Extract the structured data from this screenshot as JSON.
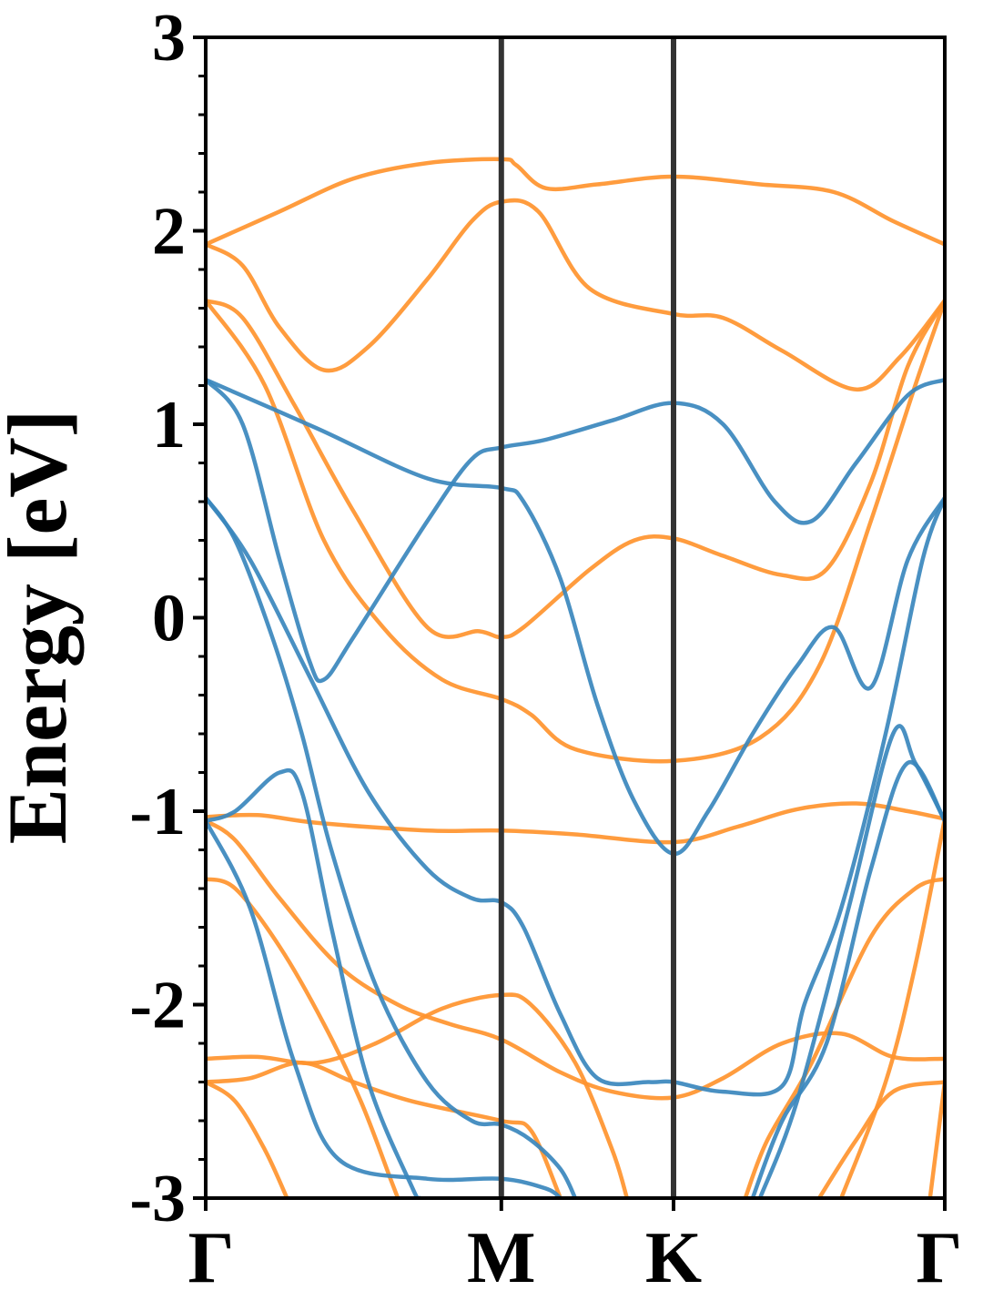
{
  "chart_data": {
    "type": "line",
    "title": "",
    "xlabel": "",
    "ylabel": "Energy [eV]",
    "ylim": [
      -3,
      3
    ],
    "xlim": [
      0,
      10
    ],
    "grid": false,
    "x_ticks": [
      {
        "label": "Γ",
        "x": 0
      },
      {
        "label": "M",
        "x": 4
      },
      {
        "label": "K",
        "x": 6.33
      },
      {
        "label": "Γ",
        "x": 10
      }
    ],
    "y_ticks": [
      {
        "label": "3",
        "value": 3
      },
      {
        "label": "2",
        "value": 2
      },
      {
        "label": "1",
        "value": 1
      },
      {
        "label": "0",
        "value": 0
      },
      {
        "label": "-1",
        "value": -1
      },
      {
        "label": "-2",
        "value": -2
      },
      {
        "label": "-3",
        "value": -3
      }
    ],
    "colors": {
      "blue": "#3a87bd",
      "orange": "#ff942e",
      "vline": "#333333"
    },
    "series": [
      {
        "color": "orange",
        "points": [
          [
            0,
            1.93
          ],
          [
            1,
            2.1
          ],
          [
            2,
            2.27
          ],
          [
            3,
            2.35
          ],
          [
            4,
            2.37
          ],
          [
            4.2,
            2.34
          ],
          [
            4.6,
            2.22
          ],
          [
            5.3,
            2.24
          ],
          [
            6.33,
            2.28
          ],
          [
            7.5,
            2.24
          ],
          [
            8.5,
            2.2
          ],
          [
            9.3,
            2.05
          ],
          [
            10,
            1.93
          ]
        ]
      },
      {
        "color": "orange",
        "points": [
          [
            0,
            1.93
          ],
          [
            0.5,
            1.82
          ],
          [
            1,
            1.5
          ],
          [
            1.6,
            1.28
          ],
          [
            2.2,
            1.4
          ],
          [
            3,
            1.75
          ],
          [
            3.6,
            2.05
          ],
          [
            4,
            2.15
          ],
          [
            4.5,
            2.1
          ],
          [
            5.2,
            1.7
          ],
          [
            6.33,
            1.57
          ],
          [
            7,
            1.55
          ],
          [
            7.8,
            1.38
          ],
          [
            8.8,
            1.18
          ],
          [
            9.4,
            1.35
          ],
          [
            10,
            1.64
          ]
        ]
      },
      {
        "color": "orange",
        "points": [
          [
            0,
            1.64
          ],
          [
            0.5,
            1.55
          ],
          [
            1.2,
            1.1
          ],
          [
            2,
            0.55
          ],
          [
            3,
            -0.05
          ],
          [
            3.7,
            -0.07
          ],
          [
            4,
            -0.1
          ],
          [
            4.3,
            -0.05
          ],
          [
            5.2,
            0.25
          ],
          [
            5.8,
            0.4
          ],
          [
            6.33,
            0.41
          ],
          [
            7,
            0.32
          ],
          [
            7.8,
            0.22
          ],
          [
            8.4,
            0.25
          ],
          [
            9,
            0.7
          ],
          [
            9.5,
            1.3
          ],
          [
            10,
            1.64
          ]
        ]
      },
      {
        "color": "orange",
        "points": [
          [
            0,
            1.64
          ],
          [
            0.8,
            1.2
          ],
          [
            1.6,
            0.4
          ],
          [
            2.4,
            -0.05
          ],
          [
            3.2,
            -0.32
          ],
          [
            4,
            -0.42
          ],
          [
            4.4,
            -0.5
          ],
          [
            5,
            -0.68
          ],
          [
            6.33,
            -0.74
          ],
          [
            7.5,
            -0.62
          ],
          [
            8.3,
            -0.25
          ],
          [
            9,
            0.5
          ],
          [
            9.6,
            1.2
          ],
          [
            10,
            1.64
          ]
        ]
      },
      {
        "color": "orange",
        "points": [
          [
            0,
            -1.03
          ],
          [
            0.7,
            -1.02
          ],
          [
            1.5,
            -1.06
          ],
          [
            3,
            -1.1
          ],
          [
            4,
            -1.1
          ],
          [
            5,
            -1.12
          ],
          [
            6.33,
            -1.16
          ],
          [
            7.2,
            -1.08
          ],
          [
            8,
            -0.99
          ],
          [
            8.8,
            -0.96
          ],
          [
            9.5,
            -1
          ],
          [
            10,
            -1.04
          ]
        ]
      },
      {
        "color": "orange",
        "points": [
          [
            0,
            -1.05
          ],
          [
            0.4,
            -1.15
          ],
          [
            1,
            -1.45
          ],
          [
            1.8,
            -1.8
          ],
          [
            2.6,
            -2.0
          ],
          [
            3.3,
            -2.1
          ],
          [
            4,
            -2.18
          ],
          [
            4.8,
            -2.35
          ],
          [
            5.5,
            -2.45
          ],
          [
            6.33,
            -2.48
          ],
          [
            7,
            -2.38
          ],
          [
            7.8,
            -2.2
          ],
          [
            8.6,
            -2.15
          ],
          [
            9.3,
            -2.27
          ],
          [
            10,
            -2.28
          ]
        ]
      },
      {
        "color": "orange",
        "points": [
          [
            0,
            -1.35
          ],
          [
            0.4,
            -1.4
          ],
          [
            1,
            -1.7
          ],
          [
            1.6,
            -2.1
          ],
          [
            2.1,
            -2.5
          ],
          [
            2.5,
            -2.9
          ],
          [
            2.6,
            -3
          ]
        ]
      },
      {
        "color": "orange",
        "points": [
          [
            0,
            -2.28
          ],
          [
            0.7,
            -2.27
          ],
          [
            1.5,
            -2.3
          ],
          [
            2.3,
            -2.2
          ],
          [
            3.2,
            -2.02
          ],
          [
            4,
            -1.95
          ],
          [
            4.4,
            -2.0
          ],
          [
            5,
            -2.3
          ],
          [
            5.5,
            -2.75
          ],
          [
            5.7,
            -3
          ]
        ]
      },
      {
        "color": "orange",
        "points": [
          [
            0,
            -2.4
          ],
          [
            0.6,
            -2.38
          ],
          [
            1.3,
            -2.3
          ],
          [
            2,
            -2.4
          ],
          [
            2.8,
            -2.5
          ],
          [
            4,
            -2.6
          ],
          [
            4.4,
            -2.65
          ],
          [
            4.8,
            -3
          ]
        ]
      },
      {
        "color": "orange",
        "points": [
          [
            0,
            -2.4
          ],
          [
            0.4,
            -2.5
          ],
          [
            0.8,
            -2.75
          ],
          [
            1.1,
            -3
          ]
        ]
      },
      {
        "color": "orange",
        "points": [
          [
            7.3,
            -3
          ],
          [
            7.6,
            -2.7
          ],
          [
            8.2,
            -2.3
          ],
          [
            9,
            -1.65
          ],
          [
            9.6,
            -1.4
          ],
          [
            10,
            -1.35
          ]
        ]
      },
      {
        "color": "orange",
        "points": [
          [
            8.3,
            -3
          ],
          [
            8.8,
            -2.7
          ],
          [
            9.3,
            -2.45
          ],
          [
            10,
            -2.4
          ]
        ]
      },
      {
        "color": "orange",
        "points": [
          [
            8.6,
            -3
          ],
          [
            9.2,
            -2.4
          ],
          [
            9.6,
            -1.8
          ],
          [
            10,
            -1.04
          ]
        ]
      },
      {
        "color": "orange",
        "points": [
          [
            9.8,
            -3
          ],
          [
            9.9,
            -2.7
          ],
          [
            10,
            -2.4
          ]
        ]
      },
      {
        "color": "blue",
        "points": [
          [
            0,
            1.23
          ],
          [
            1.5,
            0.98
          ],
          [
            3,
            0.72
          ],
          [
            4,
            0.67
          ],
          [
            4.3,
            0.6
          ],
          [
            4.8,
            0.2
          ],
          [
            5.3,
            -0.45
          ],
          [
            5.8,
            -0.95
          ],
          [
            6.33,
            -1.22
          ],
          [
            6.8,
            -1.0
          ],
          [
            7.4,
            -0.6
          ],
          [
            8,
            -0.25
          ],
          [
            8.5,
            -0.05
          ],
          [
            9.0,
            -0.36
          ],
          [
            9.5,
            0.3
          ],
          [
            10,
            0.62
          ]
        ]
      },
      {
        "color": "blue",
        "points": [
          [
            0,
            1.23
          ],
          [
            0.5,
            1.0
          ],
          [
            1,
            0.3
          ],
          [
            1.4,
            -0.22
          ],
          [
            1.6,
            -0.32
          ],
          [
            2,
            -0.1
          ],
          [
            3,
            0.5
          ],
          [
            3.6,
            0.82
          ],
          [
            4,
            0.88
          ],
          [
            4.6,
            0.92
          ],
          [
            5.5,
            1.02
          ],
          [
            6.33,
            1.11
          ],
          [
            7,
            1.0
          ],
          [
            7.7,
            0.6
          ],
          [
            8.2,
            0.5
          ],
          [
            8.8,
            0.8
          ],
          [
            9.5,
            1.15
          ],
          [
            10,
            1.23
          ]
        ]
      },
      {
        "color": "blue",
        "points": [
          [
            0,
            0.62
          ],
          [
            0.6,
            0.3
          ],
          [
            1.4,
            -0.3
          ],
          [
            2.2,
            -0.9
          ],
          [
            3,
            -1.3
          ],
          [
            3.6,
            -1.45
          ],
          [
            4,
            -1.47
          ],
          [
            4.3,
            -1.6
          ],
          [
            4.8,
            -2.05
          ],
          [
            5.3,
            -2.38
          ],
          [
            6,
            -2.4
          ],
          [
            6.33,
            -2.4
          ],
          [
            7,
            -2.45
          ],
          [
            7.8,
            -2.42
          ],
          [
            8.1,
            -2.0
          ],
          [
            8.6,
            -1.5
          ],
          [
            9.2,
            -0.6
          ],
          [
            9.7,
            0.3
          ],
          [
            10,
            0.62
          ]
        ]
      },
      {
        "color": "blue",
        "points": [
          [
            0,
            0.62
          ],
          [
            0.4,
            0.4
          ],
          [
            0.9,
            -0.1
          ],
          [
            1.3,
            -0.6
          ],
          [
            1.7,
            -1.2
          ],
          [
            2.3,
            -1.9
          ],
          [
            3,
            -2.4
          ],
          [
            3.6,
            -2.6
          ],
          [
            4,
            -2.62
          ],
          [
            4.4,
            -2.7
          ],
          [
            4.8,
            -2.85
          ],
          [
            5,
            -3
          ]
        ]
      },
      {
        "color": "blue",
        "points": [
          [
            0,
            -1.05
          ],
          [
            0.4,
            -1.0
          ],
          [
            1.0,
            -0.8
          ],
          [
            1.3,
            -0.9
          ],
          [
            1.7,
            -1.6
          ],
          [
            2.2,
            -2.4
          ],
          [
            2.8,
            -2.95
          ],
          [
            2.9,
            -3
          ]
        ]
      },
      {
        "color": "blue",
        "points": [
          [
            0,
            -1.05
          ],
          [
            0.6,
            -1.5
          ],
          [
            1.2,
            -2.3
          ],
          [
            1.8,
            -2.8
          ],
          [
            3,
            -2.9
          ],
          [
            4,
            -2.9
          ],
          [
            4.6,
            -2.95
          ],
          [
            4.8,
            -3
          ]
        ]
      },
      {
        "color": "blue",
        "points": [
          [
            7.4,
            -3
          ],
          [
            7.8,
            -2.6
          ],
          [
            8.4,
            -2.2
          ],
          [
            9.0,
            -1.3
          ],
          [
            9.5,
            -0.75
          ],
          [
            10,
            -1.05
          ]
        ]
      },
      {
        "color": "blue",
        "points": [
          [
            7.5,
            -3
          ],
          [
            8.0,
            -2.5
          ],
          [
            8.7,
            -1.5
          ],
          [
            9.3,
            -0.6
          ],
          [
            9.6,
            -0.75
          ],
          [
            10,
            -1.05
          ]
        ]
      }
    ]
  }
}
